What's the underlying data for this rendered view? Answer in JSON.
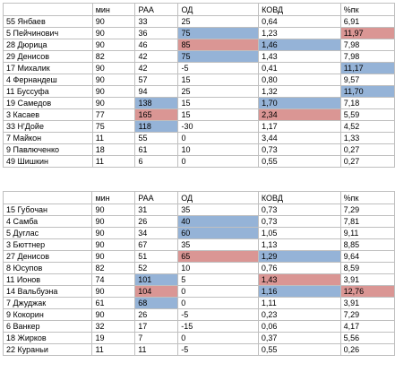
{
  "colors": {
    "blue": "#95b3d7",
    "red": "#da9694",
    "gridline": "#bfbfbf"
  },
  "tables": [
    {
      "headers": [
        "",
        "мин",
        "РАА",
        "ОД",
        "КОВД",
        "%пк"
      ],
      "rows": [
        {
          "cells": [
            "55 Янбаев",
            "90",
            "33",
            "25",
            "0,64",
            "6,91"
          ],
          "hl": [
            "",
            "",
            "",
            "",
            "",
            ""
          ]
        },
        {
          "cells": [
            "5 Пейчинович",
            "90",
            "36",
            "75",
            "1,23",
            "11,97"
          ],
          "hl": [
            "",
            "",
            "",
            "blue",
            "",
            "red"
          ]
        },
        {
          "cells": [
            "28 Дюрица",
            "90",
            "46",
            "85",
            "1,46",
            "7,98"
          ],
          "hl": [
            "",
            "",
            "",
            "red",
            "blue",
            ""
          ]
        },
        {
          "cells": [
            "29 Денисов",
            "82",
            "42",
            "75",
            "1,43",
            "7,98"
          ],
          "hl": [
            "",
            "",
            "",
            "blue",
            "",
            ""
          ]
        },
        {
          "cells": [
            "17 Михалик",
            "90",
            "42",
            "-5",
            "0,41",
            "11,17"
          ],
          "hl": [
            "",
            "",
            "",
            "",
            "",
            "blue"
          ]
        },
        {
          "cells": [
            "4 Фернандеш",
            "90",
            "57",
            "15",
            "0,80",
            "9,57"
          ],
          "hl": [
            "",
            "",
            "",
            "",
            "",
            ""
          ]
        },
        {
          "cells": [
            "11 Буссуфа",
            "90",
            "94",
            "25",
            "1,32",
            "11,70"
          ],
          "hl": [
            "",
            "",
            "",
            "",
            "",
            "blue"
          ]
        },
        {
          "cells": [
            "19 Самедов",
            "90",
            "138",
            "15",
            "1,70",
            "7,18"
          ],
          "hl": [
            "",
            "",
            "blue",
            "",
            "blue",
            ""
          ]
        },
        {
          "cells": [
            "3 Касаев",
            "77",
            "165",
            "15",
            "2,34",
            "5,59"
          ],
          "hl": [
            "",
            "",
            "red",
            "",
            "red",
            ""
          ]
        },
        {
          "cells": [
            "33 Н'Дойе",
            "75",
            "118",
            "-30",
            "1,17",
            "4,52"
          ],
          "hl": [
            "",
            "",
            "blue",
            "",
            "",
            ""
          ]
        },
        {
          "cells": [
            "7 Майкон",
            "11",
            "55",
            "0",
            "3,44",
            "1,33"
          ],
          "hl": [
            "",
            "",
            "",
            "",
            "",
            ""
          ]
        },
        {
          "cells": [
            "9 Павлюченко",
            "18",
            "61",
            "10",
            "0,73",
            "0,27"
          ],
          "hl": [
            "",
            "",
            "",
            "",
            "",
            ""
          ]
        },
        {
          "cells": [
            "49 Шишкин",
            "11",
            "6",
            "0",
            "0,55",
            "0,27"
          ],
          "hl": [
            "",
            "",
            "",
            "",
            "",
            ""
          ]
        }
      ]
    },
    {
      "headers": [
        "",
        "мин",
        "РАА",
        "ОД",
        "КОВД",
        "%пк"
      ],
      "rows": [
        {
          "cells": [
            "15 Губочан",
            "90",
            "31",
            "35",
            "0,73",
            "7,29"
          ],
          "hl": [
            "",
            "",
            "",
            "",
            "",
            ""
          ]
        },
        {
          "cells": [
            "4 Самба",
            "90",
            "26",
            "40",
            "0,73",
            "7,81"
          ],
          "hl": [
            "",
            "",
            "",
            "blue",
            "",
            ""
          ]
        },
        {
          "cells": [
            "5 Дуглас",
            "90",
            "34",
            "60",
            "1,05",
            "9,11"
          ],
          "hl": [
            "",
            "",
            "",
            "blue",
            "",
            ""
          ]
        },
        {
          "cells": [
            "3 Бюттнер",
            "90",
            "67",
            "35",
            "1,13",
            "8,85"
          ],
          "hl": [
            "",
            "",
            "",
            "",
            "",
            ""
          ]
        },
        {
          "cells": [
            "27 Денисов",
            "90",
            "51",
            "65",
            "1,29",
            "9,64"
          ],
          "hl": [
            "",
            "",
            "",
            "red",
            "blue",
            ""
          ]
        },
        {
          "cells": [
            "8 Юсупов",
            "82",
            "52",
            "10",
            "0,76",
            "8,59"
          ],
          "hl": [
            "",
            "",
            "",
            "",
            "",
            ""
          ]
        },
        {
          "cells": [
            "11 Ионов",
            "74",
            "101",
            "5",
            "1,43",
            "3,91"
          ],
          "hl": [
            "",
            "",
            "blue",
            "",
            "red",
            ""
          ]
        },
        {
          "cells": [
            "14 Вальбуэна",
            "90",
            "104",
            "0",
            "1,16",
            "12,76"
          ],
          "hl": [
            "",
            "",
            "red",
            "",
            "blue",
            "red"
          ]
        },
        {
          "cells": [
            "7 Джуджак",
            "61",
            "68",
            "0",
            "1,11",
            "3,91"
          ],
          "hl": [
            "",
            "",
            "blue",
            "",
            "",
            ""
          ]
        },
        {
          "cells": [
            "9 Кокорин",
            "90",
            "26",
            "-5",
            "0,23",
            "7,29"
          ],
          "hl": [
            "",
            "",
            "",
            "",
            "",
            ""
          ]
        },
        {
          "cells": [
            "6 Ванкер",
            "32",
            "17",
            "-15",
            "0,06",
            "4,17"
          ],
          "hl": [
            "",
            "",
            "",
            "",
            "",
            ""
          ]
        },
        {
          "cells": [
            "18 Жирков",
            "19",
            "7",
            "0",
            "0,37",
            "5,56"
          ],
          "hl": [
            "",
            "",
            "",
            "",
            "",
            ""
          ]
        },
        {
          "cells": [
            "22 Кураньи",
            "11",
            "11",
            "-5",
            "0,55",
            "0,26"
          ],
          "hl": [
            "",
            "",
            "",
            "",
            "",
            ""
          ]
        }
      ]
    }
  ]
}
